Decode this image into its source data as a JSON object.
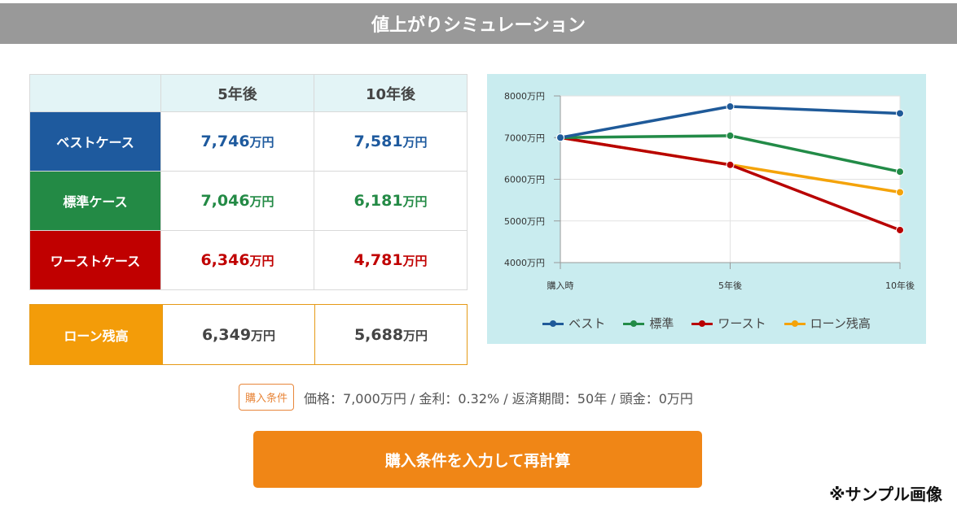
{
  "title": "値上がりシミュレーション",
  "table": {
    "columns": [
      "5年後",
      "10年後"
    ],
    "unit": "万円",
    "rows": [
      {
        "label": "ベストケース",
        "color": "#1e5a9e",
        "values": [
          "7,746",
          "7,581"
        ]
      },
      {
        "label": "標準ケース",
        "color": "#238a45",
        "values": [
          "7,046",
          "6,181"
        ]
      },
      {
        "label": "ワーストケース",
        "color": "#c00000",
        "values": [
          "6,346",
          "4,781"
        ]
      }
    ]
  },
  "loan": {
    "label": "ローン残高",
    "color": "#f39c09",
    "values": [
      "6,349",
      "5,688"
    ]
  },
  "chart_data": {
    "type": "line",
    "categories": [
      "購入時",
      "5年後",
      "10年後"
    ],
    "series": [
      {
        "name": "ベスト",
        "color": "#1f5a99",
        "values": [
          7000,
          7746,
          7581
        ]
      },
      {
        "name": "標準",
        "color": "#228b47",
        "values": [
          7000,
          7046,
          6181
        ]
      },
      {
        "name": "ワースト",
        "color": "#b80000",
        "values": [
          7000,
          6346,
          4781
        ]
      },
      {
        "name": "ローン残高",
        "color": "#f4a30a",
        "values": [
          7000,
          6349,
          5688
        ]
      }
    ],
    "yticks": [
      "8000万円",
      "7000万円",
      "6000万円",
      "5000万円",
      "4000万円"
    ],
    "ylim": [
      4000,
      8000
    ],
    "grid": true,
    "legend": "bottom"
  },
  "conditions": {
    "badge": "購入条件",
    "text": "価格：7,000万円 / 金利：0.32% / 返済期間：50年 / 頭金：0万円"
  },
  "recalc_button": "購入条件を入力して再計算",
  "sample_note": "※サンプル画像"
}
